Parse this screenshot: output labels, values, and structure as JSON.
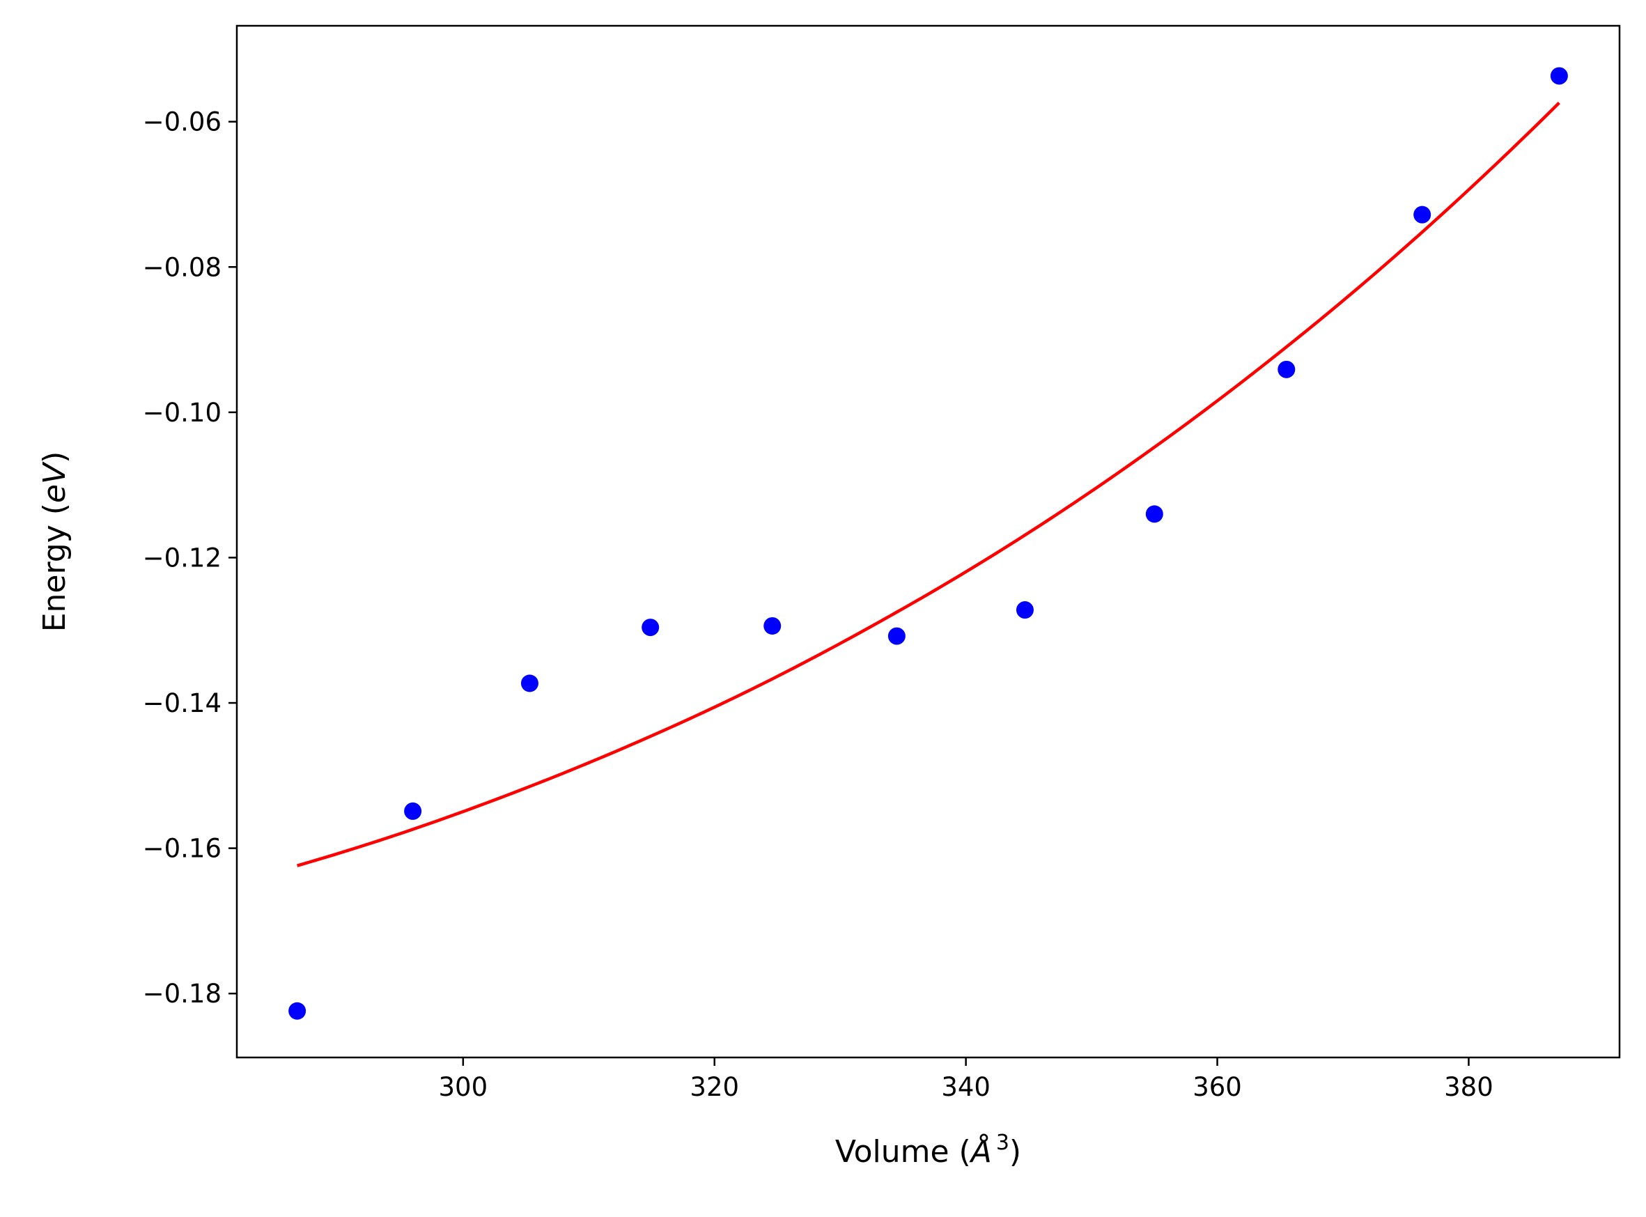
{
  "chart_data": {
    "type": "scatter",
    "xlabel_text": "Volume (",
    "xlabel_math": "Å",
    "xlabel_sup": "3",
    "xlabel_close": ")",
    "ylabel_text": "Energy (",
    "ylabel_math": "eV",
    "ylabel_close": ")",
    "xlim": [
      282,
      392
    ],
    "ylim": [
      -0.1888,
      -0.0468
    ],
    "x_ticks": [
      300,
      320,
      340,
      360,
      380
    ],
    "x_tick_labels": [
      "300",
      "320",
      "340",
      "360",
      "380"
    ],
    "y_ticks": [
      -0.06,
      -0.08,
      -0.1,
      -0.12,
      -0.14,
      -0.16,
      -0.18
    ],
    "y_tick_labels": [
      "−0.06",
      "−0.08",
      "−0.10",
      "−0.12",
      "−0.14",
      "−0.16",
      "−0.18"
    ],
    "grid": false,
    "series": [
      {
        "kind": "points",
        "color": "#0000ff",
        "x": [
          286.8,
          296.0,
          305.3,
          314.9,
          324.6,
          334.5,
          344.7,
          355.0,
          365.5,
          376.3,
          387.2
        ],
        "y": [
          -0.1824,
          -0.1549,
          -0.1373,
          -0.1296,
          -0.1294,
          -0.1308,
          -0.1272,
          -0.114,
          -0.0941,
          -0.0728,
          -0.0537
        ]
      },
      {
        "kind": "fit-line",
        "color": "#ff0000",
        "x": [
          286.8,
          296.0,
          305.3,
          314.9,
          324.6,
          334.5,
          344.7,
          355.0,
          365.5,
          376.3,
          387.2
        ],
        "y": [
          -0.1624,
          -0.1574,
          -0.1515,
          -0.1446,
          -0.1367,
          -0.1275,
          -0.1169,
          -0.1048,
          -0.091,
          -0.0752,
          -0.0574
        ]
      }
    ]
  }
}
